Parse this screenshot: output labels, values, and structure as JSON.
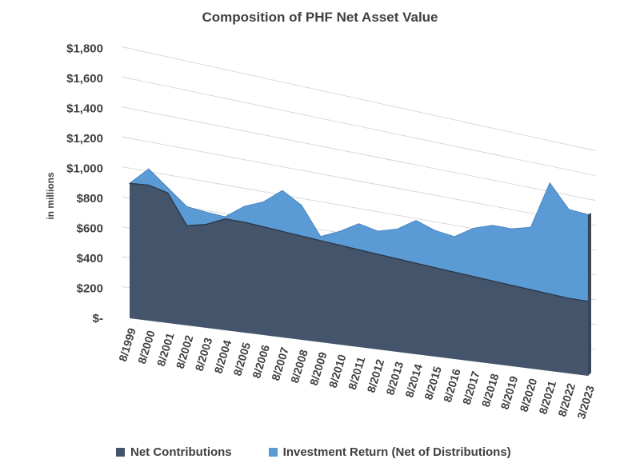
{
  "chart_data": {
    "type": "area",
    "title": "Composition of PHF Net Asset Value",
    "ylabel": "in millions",
    "xlabel": "",
    "ylim": [
      0,
      1800
    ],
    "y_ticks": [
      "$-",
      "$200",
      "$400",
      "$600",
      "$800",
      "$1,000",
      "$1,200",
      "$1,400",
      "$1,600",
      "$1,800"
    ],
    "grid": true,
    "stacked": true,
    "legend_position": "bottom",
    "categories": [
      "8/1999",
      "8/2000",
      "8/2001",
      "8/2002",
      "8/2003",
      "8/2004",
      "8/2005",
      "8/2006",
      "8/2007",
      "8/2008",
      "8/2009",
      "8/2010",
      "8/2011",
      "8/2012",
      "8/2013",
      "8/2014",
      "8/2015",
      "8/2016",
      "8/2017",
      "8/2018",
      "8/2019",
      "8/2020",
      "8/2021",
      "8/2022",
      "3/2023"
    ],
    "series": [
      {
        "name": "Net Contributions",
        "color": "#44546a",
        "values": [
          900,
          910,
          880,
          680,
          710,
          770,
          770,
          760,
          750,
          740,
          730,
          720,
          710,
          700,
          690,
          680,
          670,
          660,
          650,
          640,
          630,
          620,
          610,
          600,
          600
        ]
      },
      {
        "name": "Investment Return (Net of Distributions)",
        "color": "#5b9bd5",
        "values": [
          0,
          110,
          35,
          130,
          85,
          15,
          110,
          175,
          290,
          220,
          30,
          100,
          190,
          170,
          220,
          320,
          280,
          270,
          370,
          430,
          440,
          490,
          880,
          710,
          700
        ]
      }
    ]
  }
}
